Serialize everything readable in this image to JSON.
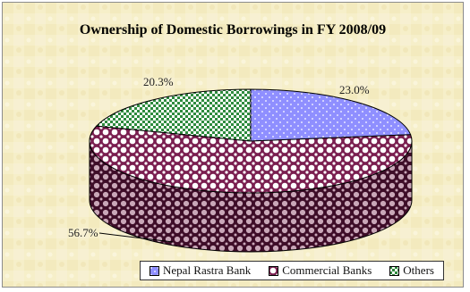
{
  "chart_data": {
    "type": "pie",
    "title": "Ownership of Domestic Borrowings in FY 2008/09",
    "categories": [
      "Nepal Rastra Bank",
      "Commercial Banks",
      "Others"
    ],
    "values": [
      23.0,
      56.7,
      20.3
    ],
    "data_labels": [
      "23.0%",
      "56.7%",
      "20.3%"
    ],
    "unit": "%",
    "style": "3d",
    "legend_position": "bottom",
    "colors": {
      "nepal_rastra_bank": "#8f8fff",
      "commercial_banks": "#7a1f50",
      "others": "#2e8b3e",
      "background": "#f6efc9"
    }
  },
  "legend": {
    "items": [
      "Nepal Rastra Bank",
      "Commercial Banks",
      "Others"
    ]
  }
}
